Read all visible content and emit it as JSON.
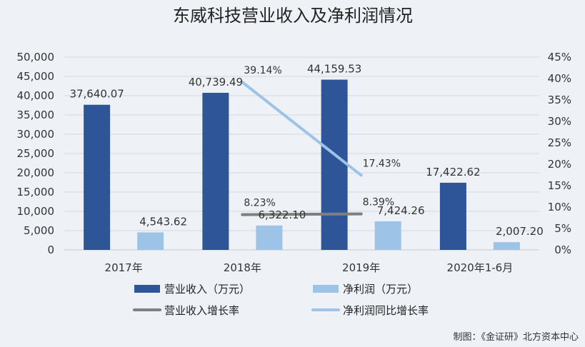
{
  "chart_data": {
    "type": "bar",
    "title": "东威科技营业收入及净利润情况",
    "categories": [
      "2017年",
      "2018年",
      "2019年",
      "2020年1-6月"
    ],
    "series": [
      {
        "name": "营业收入（万元）",
        "type": "bar",
        "axis": "left",
        "color": "#2e5597",
        "values": [
          37640.07,
          40739.49,
          44159.53,
          17422.62
        ],
        "labels": [
          "37,640.07",
          "40,739.49",
          "44,159.53",
          "17,422.62"
        ]
      },
      {
        "name": "净利润（万元）",
        "type": "bar",
        "axis": "left",
        "color": "#9dc3e6",
        "values": [
          4543.62,
          6322.1,
          7424.26,
          2007.2
        ],
        "labels": [
          "4,543.62",
          "6,322.10",
          "7,424.26",
          "2,007.20"
        ]
      },
      {
        "name": "营业收入增长率",
        "type": "line",
        "axis": "right",
        "color": "#7f7f7f",
        "values": [
          null,
          8.23,
          8.39,
          null
        ],
        "labels": [
          "",
          "8.23%",
          "8.39%",
          ""
        ]
      },
      {
        "name": "净利润同比增长率",
        "type": "line",
        "axis": "right",
        "color": "#9dc3e6",
        "values": [
          null,
          39.14,
          17.43,
          null
        ],
        "labels": [
          "",
          "39.14%",
          "17.43%",
          ""
        ]
      }
    ],
    "ylim": [
      0,
      50000
    ],
    "y_ticks": [
      "0",
      "5,000",
      "10,000",
      "15,000",
      "20,000",
      "25,000",
      "30,000",
      "35,000",
      "40,000",
      "45,000",
      "50,000"
    ],
    "y2lim": [
      0,
      45
    ],
    "y2_ticks": [
      "0%",
      "5%",
      "10%",
      "15%",
      "20%",
      "25%",
      "30%",
      "35%",
      "40%",
      "45%"
    ],
    "grid": true,
    "legend_position": "bottom"
  },
  "credit": "制图：《金证研》北方资本中心"
}
